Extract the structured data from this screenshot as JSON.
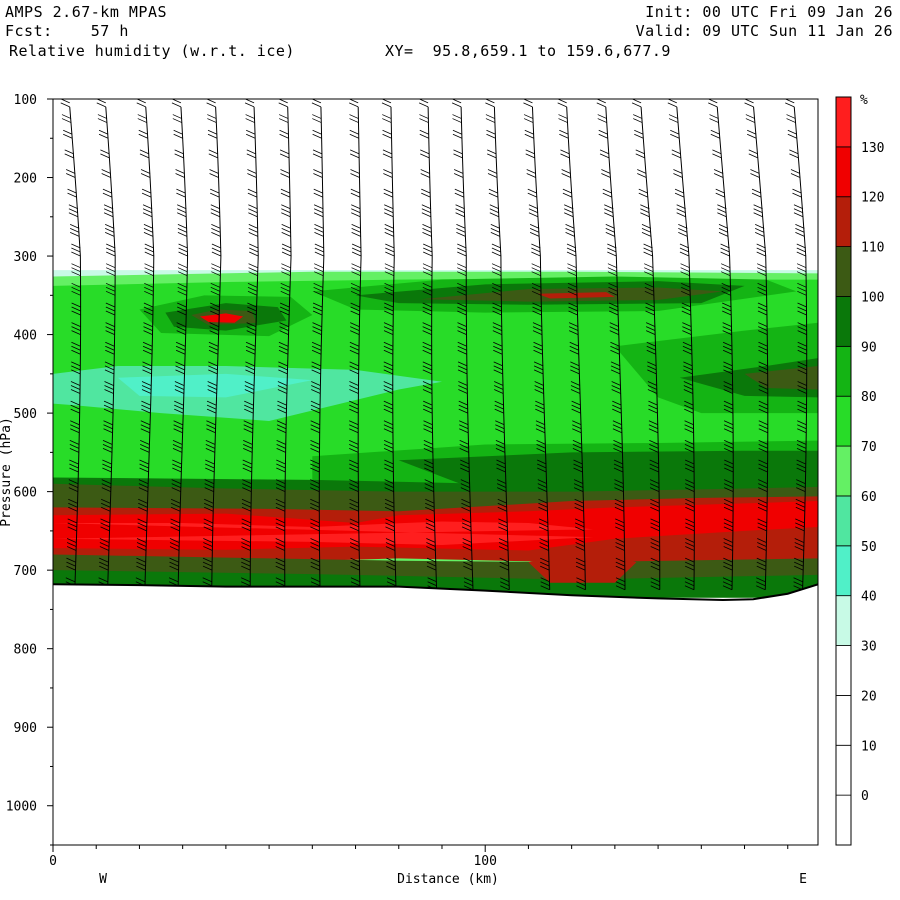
{
  "header": {
    "model": "AMPS 2.67-km MPAS",
    "fcst_label": "Fcst:",
    "fcst_value": "57 h",
    "field": "Relative humidity (w.r.t. ice)",
    "xy_label": "XY=",
    "xy_value": "95.8,659.1 to 159.6,677.9",
    "init": "Init: 00 UTC Fri 09 Jan 26",
    "valid": "Valid: 09 UTC Sun 11 Jan 26"
  },
  "chart_data": {
    "type": "heatmap",
    "title": "Relative humidity (w.r.t. ice)",
    "xlabel": "Distance (km)",
    "ylabel": "Pressure (hPa)",
    "xlim": [
      0,
      177
    ],
    "ylim": [
      1050,
      100
    ],
    "x_ticks": [
      0,
      100
    ],
    "x_tick_labels": [
      "0",
      "100"
    ],
    "y_ticks": [
      100,
      200,
      300,
      400,
      500,
      600,
      700,
      800,
      900,
      1000
    ],
    "y_tick_labels": [
      "100",
      "200",
      "300",
      "400",
      "500",
      "600",
      "700",
      "800",
      "900",
      "1000"
    ],
    "x_end_labels": {
      "left": "W",
      "right": "E"
    },
    "colorbar": {
      "unit": "%",
      "levels": [
        -10,
        0,
        10,
        20,
        30,
        40,
        50,
        60,
        70,
        80,
        90,
        100,
        110,
        120,
        130,
        140
      ],
      "labels": [
        "0",
        "10",
        "20",
        "30",
        "40",
        "50",
        "60",
        "70",
        "80",
        "90",
        "100",
        "110",
        "120",
        "130"
      ],
      "colors": [
        "#ffffff",
        "#ffffff",
        "#ffffff",
        "#ffffff",
        "#c8fae6",
        "#50f0c8",
        "#50e6a0",
        "#64f064",
        "#28dc28",
        "#14b414",
        "#0a780a",
        "#3c5a14",
        "#b41e0a",
        "#f00000",
        "#ff1e1e"
      ]
    },
    "terrain_pressure": [
      {
        "x": 0,
        "p": 718
      },
      {
        "x": 20,
        "p": 719
      },
      {
        "x": 40,
        "p": 721
      },
      {
        "x": 60,
        "p": 721
      },
      {
        "x": 80,
        "p": 721
      },
      {
        "x": 100,
        "p": 726
      },
      {
        "x": 120,
        "p": 732
      },
      {
        "x": 140,
        "p": 736
      },
      {
        "x": 155,
        "p": 738
      },
      {
        "x": 162,
        "p": 737
      },
      {
        "x": 170,
        "p": 730
      },
      {
        "x": 177,
        "p": 718
      }
    ],
    "bands": [
      {
        "top": [
          [
            0,
            318
          ],
          [
            177,
            318
          ]
        ],
        "bottom": [
          [
            0,
            735
          ],
          [
            177,
            735
          ]
        ],
        "color": "#c8fae6"
      },
      {
        "top": [
          [
            0,
            326
          ],
          [
            60,
            320
          ],
          [
            120,
            320
          ],
          [
            177,
            322
          ]
        ],
        "bottom": [
          [
            0,
            735
          ],
          [
            177,
            735
          ]
        ],
        "color": "#64f064"
      },
      {
        "top": [
          [
            0,
            338
          ],
          [
            40,
            333
          ],
          [
            80,
            330
          ],
          [
            120,
            328
          ],
          [
            150,
            330
          ],
          [
            177,
            330
          ]
        ],
        "bottom": [
          [
            0,
            585
          ],
          [
            50,
            590
          ],
          [
            100,
            585
          ],
          [
            177,
            590
          ]
        ],
        "color": "#28dc28"
      },
      {
        "top": [
          [
            0,
            450
          ],
          [
            15,
            440
          ],
          [
            40,
            440
          ],
          [
            70,
            445
          ],
          [
            90,
            460
          ],
          [
            80,
            470
          ],
          [
            50,
            510
          ],
          [
            25,
            500
          ],
          [
            5,
            490
          ],
          [
            0,
            488
          ]
        ],
        "color": "#50e6a0"
      },
      {
        "top": [
          [
            15,
            455
          ],
          [
            40,
            450
          ],
          [
            60,
            458
          ],
          [
            40,
            480
          ],
          [
            20,
            478
          ]
        ],
        "color": "#50f0c8"
      },
      {
        "top": [
          [
            20,
            368
          ],
          [
            35,
            350
          ],
          [
            55,
            352
          ],
          [
            60,
            375
          ],
          [
            50,
            402
          ],
          [
            25,
            398
          ]
        ],
        "color": "#14b414"
      },
      {
        "top": [
          [
            26,
            372
          ],
          [
            40,
            360
          ],
          [
            52,
            365
          ],
          [
            54,
            382
          ],
          [
            40,
            395
          ],
          [
            28,
            390
          ]
        ],
        "color": "#0a780a"
      },
      {
        "top": [
          [
            32,
            375
          ],
          [
            38,
            368
          ],
          [
            46,
            370
          ],
          [
            47,
            385
          ],
          [
            36,
            388
          ]
        ],
        "color": "#3c5a14"
      },
      {
        "top": [
          [
            34,
            377
          ],
          [
            40,
            373
          ],
          [
            44,
            377
          ],
          [
            42,
            385
          ],
          [
            36,
            384
          ]
        ],
        "color": "#f00000"
      },
      {
        "top": [
          [
            60,
            345
          ],
          [
            90,
            330
          ],
          [
            130,
            326
          ],
          [
            165,
            330
          ],
          [
            172,
            345
          ],
          [
            140,
            370
          ],
          [
            100,
            372
          ],
          [
            70,
            368
          ]
        ],
        "color": "#14b414"
      },
      {
        "top": [
          [
            70,
            350
          ],
          [
            100,
            336
          ],
          [
            140,
            332
          ],
          [
            160,
            338
          ],
          [
            150,
            360
          ],
          [
            110,
            362
          ],
          [
            80,
            360
          ]
        ],
        "color": "#0a780a"
      },
      {
        "top": [
          [
            85,
            355
          ],
          [
            110,
            342
          ],
          [
            140,
            340
          ],
          [
            155,
            345
          ],
          [
            140,
            356
          ],
          [
            110,
            358
          ]
        ],
        "color": "#3c5a14"
      },
      {
        "top": [
          [
            112,
            348
          ],
          [
            128,
            346
          ],
          [
            130,
            352
          ],
          [
            115,
            354
          ]
        ],
        "color": "#b41e0a"
      },
      {
        "top": [
          [
            130,
            415
          ],
          [
            160,
            395
          ],
          [
            177,
            385
          ],
          [
            177,
            500
          ],
          [
            150,
            500
          ],
          [
            140,
            480
          ]
        ],
        "color": "#14b414"
      },
      {
        "top": [
          [
            145,
            455
          ],
          [
            165,
            440
          ],
          [
            177,
            430
          ],
          [
            177,
            480
          ],
          [
            160,
            478
          ]
        ],
        "color": "#0a780a"
      },
      {
        "top": [
          [
            160,
            450
          ],
          [
            177,
            440
          ],
          [
            177,
            470
          ],
          [
            165,
            468
          ]
        ],
        "color": "#3c5a14"
      },
      {
        "top": [
          [
            60,
            555
          ],
          [
            100,
            540
          ],
          [
            140,
            538
          ],
          [
            177,
            535
          ],
          [
            177,
            610
          ],
          [
            140,
            612
          ],
          [
            100,
            615
          ],
          [
            60,
            600
          ]
        ],
        "color": "#14b414"
      },
      {
        "top": [
          [
            80,
            560
          ],
          [
            120,
            550
          ],
          [
            160,
            548
          ],
          [
            177,
            548
          ],
          [
            177,
            600
          ],
          [
            140,
            605
          ],
          [
            100,
            602
          ]
        ],
        "color": "#0a780a"
      },
      {
        "top": [
          [
            0,
            582
          ],
          [
            60,
            585
          ],
          [
            100,
            590
          ],
          [
            140,
            595
          ],
          [
            177,
            588
          ]
        ],
        "bottom": [
          [
            0,
            628
          ],
          [
            60,
            628
          ],
          [
            100,
            625
          ],
          [
            177,
            610
          ]
        ],
        "color": "#0a780a"
      },
      {
        "top": [
          [
            0,
            590
          ],
          [
            40,
            596
          ],
          [
            80,
            600
          ],
          [
            120,
            600
          ],
          [
            160,
            596
          ],
          [
            177,
            594
          ]
        ],
        "bottom": [
          [
            0,
            625
          ],
          [
            80,
            625
          ],
          [
            177,
            612
          ]
        ],
        "color": "#3c5a14"
      },
      {
        "top": [
          [
            0,
            620
          ],
          [
            50,
            622
          ],
          [
            80,
            625
          ],
          [
            120,
            612
          ],
          [
            150,
            608
          ],
          [
            177,
            606
          ]
        ],
        "bottom": [
          [
            0,
            690
          ],
          [
            50,
            690
          ],
          [
            80,
            685
          ],
          [
            120,
            690
          ],
          [
            177,
            690
          ]
        ],
        "color": "#b41e0a"
      },
      {
        "top": [
          [
            0,
            630
          ],
          [
            40,
            628
          ],
          [
            70,
            640
          ],
          [
            80,
            630
          ],
          [
            110,
            625
          ],
          [
            130,
            620
          ],
          [
            160,
            615
          ],
          [
            177,
            612
          ]
        ],
        "bottom": [
          [
            0,
            672
          ],
          [
            40,
            674
          ],
          [
            70,
            670
          ],
          [
            110,
            675
          ],
          [
            130,
            660
          ],
          [
            160,
            650
          ],
          [
            177,
            645
          ]
        ],
        "color": "#f00000"
      },
      {
        "top": [
          [
            0,
            640
          ],
          [
            30,
            640
          ],
          [
            60,
            645
          ],
          [
            90,
            638
          ],
          [
            110,
            640
          ],
          [
            125,
            648
          ]
        ],
        "bottom": [
          [
            125,
            658
          ],
          [
            90,
            668
          ],
          [
            60,
            664
          ],
          [
            30,
            662
          ],
          [
            0,
            660
          ]
        ],
        "color": "#ff1e1e"
      },
      {
        "top": [
          [
            0,
            680
          ],
          [
            40,
            684
          ],
          [
            80,
            688
          ],
          [
            120,
            690
          ],
          [
            177,
            685
          ]
        ],
        "bottom": [
          [
            0,
            735
          ],
          [
            177,
            735
          ]
        ],
        "color": "#3c5a14"
      },
      {
        "top": [
          [
            0,
            700
          ],
          [
            60,
            705
          ],
          [
            120,
            712
          ],
          [
            177,
            706
          ]
        ],
        "bottom": [
          [
            0,
            735
          ],
          [
            177,
            735
          ]
        ],
        "color": "#0a780a"
      },
      {
        "top": [
          [
            110,
            690
          ],
          [
            125,
            670
          ],
          [
            135,
            690
          ],
          [
            130,
            716
          ],
          [
            115,
            716
          ]
        ],
        "color": "#b41e0a"
      }
    ],
    "wind_columns_x": [
      5,
      13,
      22,
      30,
      38,
      47,
      55,
      63,
      72,
      80,
      89,
      97,
      105,
      114,
      122,
      131,
      139,
      147,
      156,
      164,
      173
    ],
    "wind_levels_hpa": [
      110,
      130,
      150,
      175,
      200,
      225,
      250,
      275,
      300,
      325,
      350,
      375,
      400,
      425,
      450,
      475,
      500,
      525,
      550,
      575,
      600,
      625,
      650,
      675,
      700,
      725
    ]
  }
}
